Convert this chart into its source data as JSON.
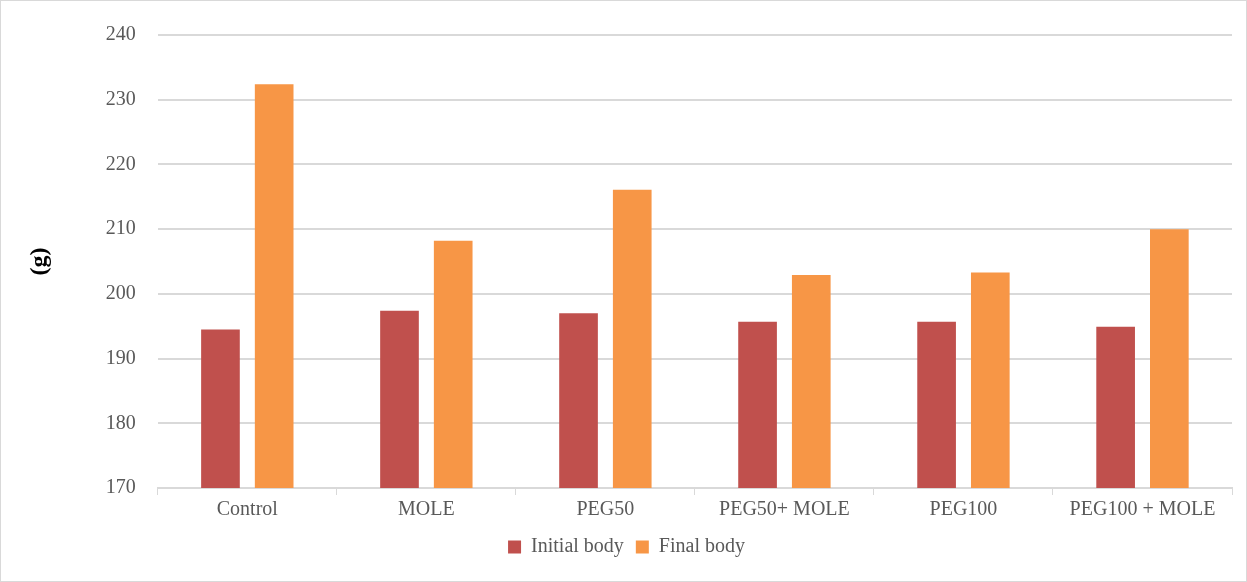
{
  "chart_data": {
    "type": "bar",
    "ylabel": "(g)",
    "categories": [
      "Control",
      "MOLE",
      "PEG50",
      "PEG50+ MOLE",
      "PEG100",
      "PEG100 + MOLE"
    ],
    "series": [
      {
        "name": "Initial body",
        "color": "#c0504d",
        "values": [
          194.5,
          197.4,
          197.0,
          195.7,
          195.7,
          194.9
        ]
      },
      {
        "name": "Final body",
        "color": "#f79646",
        "values": [
          232.4,
          208.2,
          216.1,
          202.9,
          203.3,
          210.0
        ]
      }
    ],
    "ylim": [
      170,
      240
    ],
    "yticks": [
      170,
      180,
      190,
      200,
      210,
      220,
      230,
      240
    ],
    "grid": "y",
    "legend": "bottom"
  }
}
